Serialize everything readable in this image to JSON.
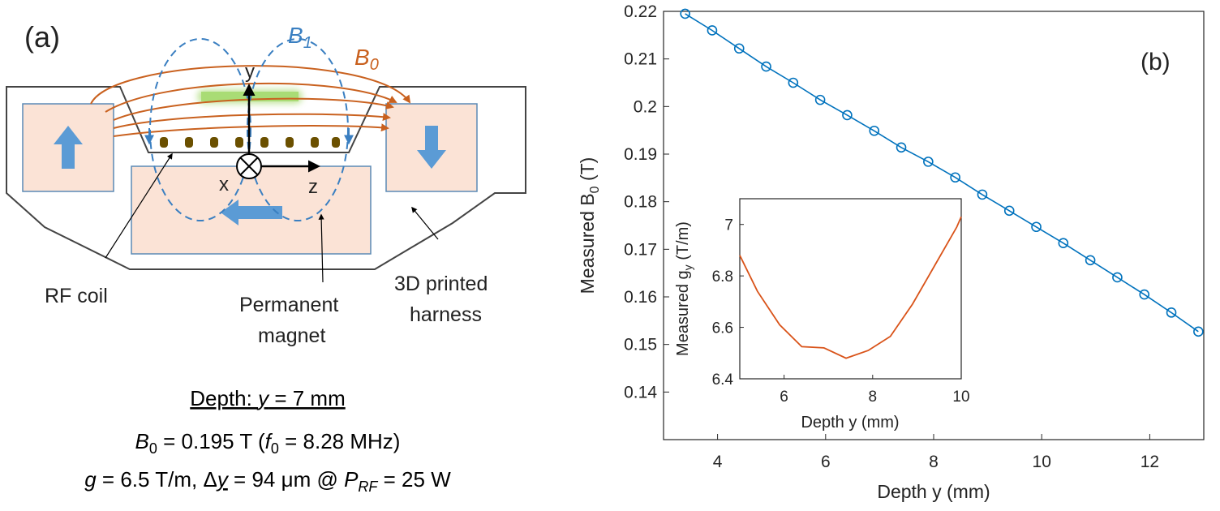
{
  "panel_a": {
    "label": "(a)",
    "b1_sym": "B",
    "b1_sub": "1",
    "b0_sym": "B",
    "b0_sub": "0",
    "axis_y": "y",
    "axis_x": "x",
    "axis_z": "z",
    "rf_coil": "RF coil",
    "magnet_line1": "Permanent",
    "magnet_line2": "magnet",
    "harness_line1": "3D printed",
    "harness_line2": "harness",
    "depth_prefix": "Depth: ",
    "depth_var": "y",
    "depth_value": " = 7 mm",
    "line2_b": "B",
    "line2_b_sub": "0",
    "line2_mid": " = 0.195 T (",
    "line2_f": "f",
    "line2_f_sub": "0",
    "line2_end": " = 8.28 MHz)",
    "line3_g": "g",
    "line3_a": " = 6.5 T/m, Δ",
    "line3_y": "y",
    "line3_b": " = 94 μm @ ",
    "line3_p": "P",
    "line3_p_sub": "RF",
    "line3_c": " = 25 W",
    "colors": {
      "b0": "#c9611f",
      "b1": "#3a7fc1",
      "magnet_fill": "#fbe3d6",
      "arrow": "#5b9bd5",
      "sample": "#92d050",
      "coil_dot": "#6b5000"
    }
  },
  "chart_data": [
    {
      "type": "line",
      "panel_label": "(b)",
      "title": "",
      "xlabel": "Depth y (mm)",
      "ylabel_main": "Measured B",
      "ylabel_sub": "0",
      "ylabel_unit": " (T)",
      "xlim": [
        3,
        13
      ],
      "ylim": [
        0.13,
        0.22
      ],
      "xticks": [
        4,
        6,
        8,
        10,
        12
      ],
      "yticks": [
        0.14,
        0.15,
        0.16,
        0.17,
        0.18,
        0.19,
        0.2,
        0.21,
        0.22
      ],
      "ytick_labels": [
        "0.14",
        "0.15",
        "0.16",
        "0.17",
        "0.18",
        "0.19",
        "0.2",
        "0.21",
        "0.22"
      ],
      "marker": "circle",
      "color": "#0072bd",
      "grid": false,
      "x": [
        3.4,
        3.9,
        4.4,
        4.9,
        5.4,
        5.9,
        6.4,
        6.9,
        7.4,
        7.9,
        8.4,
        8.9,
        9.4,
        9.9,
        10.4,
        10.9,
        11.4,
        11.9,
        12.4,
        12.9
      ],
      "y": [
        0.2195,
        0.216,
        0.2122,
        0.2084,
        0.205,
        0.2014,
        0.1982,
        0.1949,
        0.1914,
        0.1884,
        0.1851,
        0.1815,
        0.1781,
        0.1747,
        0.1713,
        0.1677,
        0.1641,
        0.1605,
        0.1567,
        0.1527
      ]
    },
    {
      "type": "line",
      "title": "",
      "xlabel": "Depth y (mm)",
      "ylabel_main": "Measured g",
      "ylabel_sub": "y",
      "ylabel_unit": " (T/m)",
      "xlim": [
        5,
        10
      ],
      "ylim": [
        6.4,
        7.1
      ],
      "xticks": [
        6,
        8,
        10
      ],
      "yticks": [
        6.4,
        6.6,
        6.8,
        7.0
      ],
      "ytick_labels": [
        "6.4",
        "6.6",
        "6.8",
        "7"
      ],
      "color": "#d95319",
      "grid": false,
      "x": [
        5.0,
        5.4,
        5.9,
        6.4,
        6.9,
        7.4,
        7.9,
        8.4,
        8.9,
        9.4,
        9.9,
        10.0
      ],
      "y": [
        6.88,
        6.74,
        6.61,
        6.525,
        6.52,
        6.48,
        6.51,
        6.565,
        6.69,
        6.84,
        6.99,
        7.03
      ]
    }
  ]
}
